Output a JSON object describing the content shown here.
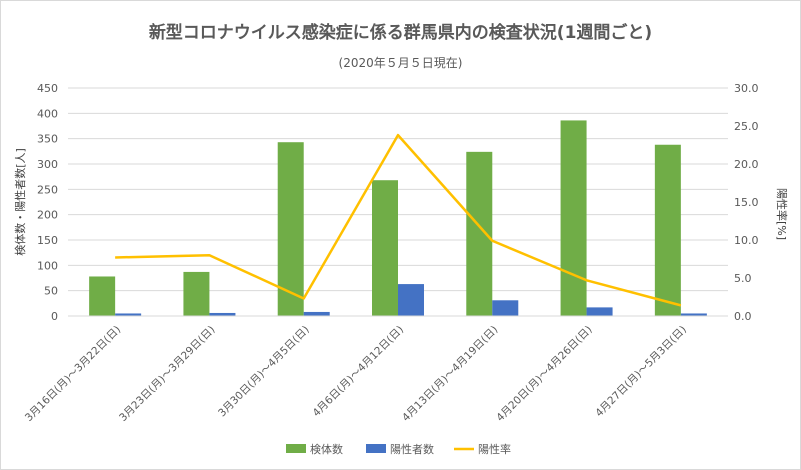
{
  "chart_data": {
    "type": "bar",
    "title": "新型コロナウイルス感染症に係る群馬県内の検査状況(1週間ごと)",
    "subtitle": "(2020年５月５日現在)",
    "categories": [
      "3月16日(月)～3月22日(日)",
      "3月23日(月)～3月29日(日)",
      "3月30日(月)～4月5日(日)",
      "4月6日(月)～4月12日(日)",
      "4月13日(月)～4月19日(日)",
      "4月20日(月)～4月26日(日)",
      "4月27日(月)～5月3日(日)"
    ],
    "series": [
      {
        "name": "検体数",
        "type": "bar",
        "axis": "left",
        "color": "#70ad47",
        "values": [
          78,
          87,
          343,
          268,
          324,
          386,
          338
        ]
      },
      {
        "name": "陽性者数",
        "type": "bar",
        "axis": "left",
        "color": "#4472c4",
        "values": [
          5,
          6,
          8,
          63,
          31,
          17,
          5
        ]
      },
      {
        "name": "陽性率",
        "type": "line",
        "axis": "right",
        "color": "#ffc000",
        "values": [
          7.7,
          8.0,
          2.3,
          23.8,
          9.9,
          4.7,
          1.4
        ]
      }
    ],
    "ylabel": "検体数・陽性者数[人]",
    "y2label": "陽性率[%]",
    "ylim": [
      0,
      450
    ],
    "y2lim": [
      0,
      30
    ],
    "yticks": [
      "0",
      "50",
      "100",
      "150",
      "200",
      "250",
      "300",
      "350",
      "400",
      "450"
    ],
    "y2ticks": [
      "0.0",
      "5.0",
      "10.0",
      "15.0",
      "20.0",
      "25.0",
      "30.0"
    ],
    "grid": true,
    "legend": "bottom"
  }
}
